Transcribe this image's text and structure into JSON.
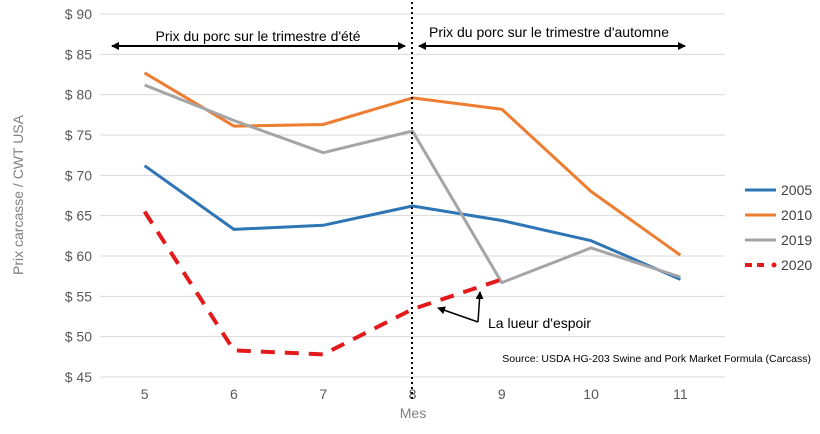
{
  "chart_data": {
    "type": "line",
    "x": [
      5,
      6,
      7,
      8,
      9,
      10,
      11
    ],
    "xlabel": "Mes",
    "ylabel": "Prix carcasse / CWT USA",
    "ylim": [
      45,
      90
    ],
    "y_ticks": [
      "$ 45",
      "$ 50",
      "$ 55",
      "$ 60",
      "$ 65",
      "$ 70",
      "$ 75",
      "$ 80",
      "$ 85",
      "$ 90"
    ],
    "x_ticks": [
      "5",
      "6",
      "7",
      "8",
      "9",
      "10",
      "11"
    ],
    "grid": true,
    "legend_position": "right",
    "series": [
      {
        "name": "2005",
        "color": "#2e75b6",
        "dashed": false,
        "values": [
          71.2,
          63.3,
          63.8,
          66.2,
          64.4,
          61.9,
          57.1
        ]
      },
      {
        "name": "2010",
        "color": "#ed7d31",
        "dashed": false,
        "values": [
          82.7,
          76.1,
          76.3,
          79.6,
          78.2,
          68.0,
          60.1
        ]
      },
      {
        "name": "2019",
        "color": "#a5a5a5",
        "dashed": false,
        "values": [
          81.2,
          76.8,
          72.8,
          75.5,
          56.7,
          61.0,
          57.4
        ]
      },
      {
        "name": "2020",
        "color": "#e31a1c",
        "dashed": true,
        "values": [
          65.5,
          48.3,
          47.8,
          53.4,
          57.1,
          null,
          null
        ]
      }
    ],
    "divider_x": 8,
    "annotations": {
      "summer": "Prix du porc sur le trimestre d'été",
      "autumn": "Prix du porc sur le trimestre d'automne",
      "hope": "La lueur d'espoir",
      "source": "Source: USDA HG-203 Swine and Pork Market Formula (Carcass)"
    }
  }
}
